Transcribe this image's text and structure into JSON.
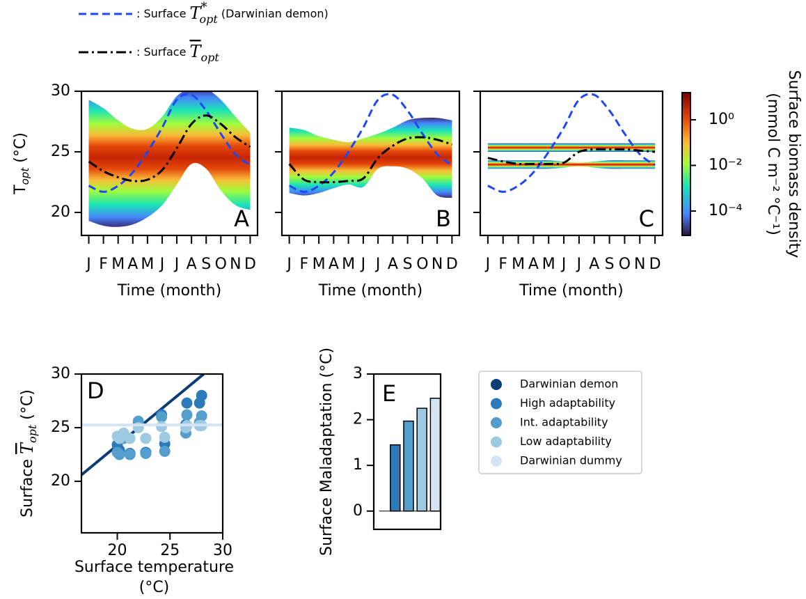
{
  "chart_data": [
    {
      "type": "density",
      "label": "A",
      "categories": [
        "J",
        "F",
        "M",
        "A",
        "M",
        "J",
        "J",
        "A",
        "S",
        "O",
        "N",
        "D"
      ],
      "xlabel": "Time (month)",
      "ylabel": [
        "T",
        "opt",
        " (°C)"
      ],
      "ylim": [
        18.1,
        30
      ],
      "yticks": [
        20,
        25,
        30
      ],
      "show_ytick_labels": true,
      "density_bands": [
        {
          "low": [
            19.3,
            18.9,
            18.8,
            19.0,
            19.6,
            20.6,
            22.3,
            24.0,
            23.6,
            21.8,
            20.6,
            20.2
          ],
          "high": [
            29.3,
            28.6,
            27.6,
            26.9,
            26.9,
            27.9,
            29.6,
            30.2,
            30.2,
            29.3,
            27.9,
            26.6
          ]
        }
      ],
      "series": [
        {
          "name": [
            ": Surface ",
            "T",
            "*",
            "opt",
            " (Darwinian demon)"
          ],
          "color": "#1f47f5",
          "dash": "dashed",
          "values": [
            22.2,
            21.7,
            22.2,
            23.3,
            25.0,
            27.0,
            29.3,
            29.7,
            28.4,
            26.5,
            24.8,
            23.9
          ]
        },
        {
          "name": [
            ": Surface ",
            "T",
            "opt"
          ],
          "color": "#000000",
          "dash": "dashdot",
          "values": [
            24.2,
            23.4,
            22.9,
            22.6,
            22.7,
            23.5,
            25.3,
            27.3,
            28.0,
            27.3,
            26.2,
            25.4
          ]
        }
      ]
    },
    {
      "type": "density",
      "label": "B",
      "categories": [
        "J",
        "F",
        "M",
        "A",
        "M",
        "J",
        "J",
        "A",
        "S",
        "O",
        "N",
        "D"
      ],
      "xlabel": "Time (month)",
      "ylim": [
        18.1,
        30
      ],
      "yticks": [
        20,
        25,
        30
      ],
      "show_ytick_labels": false,
      "density_bands": [
        {
          "low": [
            21.6,
            21.4,
            21.6,
            22.0,
            22.3,
            22.1,
            23.6,
            23.8,
            23.6,
            22.8,
            21.4,
            21.2
          ],
          "high": [
            27.0,
            26.8,
            26.3,
            26.0,
            25.8,
            26.1,
            26.5,
            27.0,
            27.6,
            27.8,
            27.8,
            27.6
          ]
        }
      ],
      "series": [
        {
          "color": "#1f47f5",
          "dash": "dashed",
          "values": [
            22.2,
            21.7,
            22.2,
            23.3,
            25.0,
            27.0,
            29.3,
            29.7,
            28.4,
            26.5,
            24.8,
            23.9
          ]
        },
        {
          "color": "#000000",
          "dash": "dashdot",
          "values": [
            24.0,
            22.7,
            22.5,
            22.5,
            22.6,
            22.8,
            24.5,
            25.5,
            26.1,
            26.2,
            26.0,
            25.6
          ]
        }
      ]
    },
    {
      "type": "density",
      "label": "C",
      "categories": [
        "J",
        "F",
        "M",
        "A",
        "M",
        "J",
        "J",
        "A",
        "S",
        "O",
        "N",
        "D"
      ],
      "xlabel": "Time (month)",
      "ylim": [
        18.1,
        30
      ],
      "yticks": [
        20,
        25,
        30
      ],
      "show_ytick_labels": false,
      "density_bands": [
        {
          "low": [
            25.0,
            25.0,
            25.0,
            25.0,
            25.0,
            25.0,
            25.0,
            25.0,
            25.0,
            25.0,
            25.0,
            25.0
          ],
          "high": [
            25.7,
            25.7,
            25.7,
            25.7,
            25.7,
            25.7,
            25.7,
            25.7,
            25.7,
            25.7,
            25.7,
            25.7
          ]
        },
        {
          "low": [
            23.6,
            23.6,
            23.6,
            23.6,
            23.6,
            23.7,
            23.8,
            23.7,
            23.6,
            23.6,
            23.6,
            23.6
          ],
          "high": [
            24.3,
            24.3,
            24.3,
            24.3,
            24.3,
            24.2,
            24.1,
            24.2,
            24.3,
            24.3,
            24.3,
            24.3
          ]
        }
      ],
      "series": [
        {
          "color": "#1f47f5",
          "dash": "dashed",
          "values": [
            22.2,
            21.7,
            22.2,
            23.3,
            25.0,
            27.0,
            29.3,
            29.7,
            28.4,
            26.5,
            24.8,
            23.9
          ]
        },
        {
          "color": "#000000",
          "dash": "dashdot",
          "values": [
            24.5,
            24.2,
            24.0,
            24.0,
            24.0,
            24.1,
            25.0,
            25.2,
            25.2,
            25.2,
            25.1,
            25.0
          ]
        }
      ],
      "colorbar": {
        "label": [
          "Surface biomass density",
          "(mmol C m⁻² °C⁻¹)"
        ],
        "scale": "log",
        "lim": [
          8.5e-06,
          15.5
        ],
        "ticks": [
          {
            "value": 1,
            "label": "10⁰"
          },
          {
            "value": 0.01,
            "label": "10⁻²"
          },
          {
            "value": 0.0001,
            "label": "10⁻⁴"
          }
        ]
      }
    },
    {
      "type": "scatter",
      "label": "D",
      "xlabel": [
        "Surface temperature",
        "(°C)"
      ],
      "ylabel": [
        "Surface  ",
        "T",
        "opt",
        " (°C)"
      ],
      "xlim": [
        16.6,
        30
      ],
      "ylim": [
        15.2,
        30
      ],
      "xticks": [
        20,
        25,
        30
      ],
      "yticks": [
        20,
        25,
        30
      ],
      "legend": "outside right",
      "series": [
        {
          "name": "Darwinian demon",
          "color": "#0b3c74",
          "style": "line",
          "x": [
            16.6,
            28.2
          ],
          "values": [
            20.6,
            30
          ]
        },
        {
          "name": "High adaptability",
          "color": "#2b7bba",
          "style": "points",
          "x": [
            20.6,
            20.0,
            20.2,
            21.2,
            22.7,
            24.5,
            26.5,
            27.8,
            28.0,
            26.6,
            24.2,
            22.0
          ],
          "values": [
            24.2,
            23.4,
            22.9,
            22.6,
            22.7,
            23.5,
            25.3,
            27.3,
            28.0,
            27.3,
            26.2,
            25.4
          ]
        },
        {
          "name": "Int. adaptability",
          "color": "#539ecd",
          "style": "points",
          "x": [
            20.6,
            20.0,
            20.2,
            21.2,
            22.7,
            24.5,
            26.5,
            27.8,
            28.0,
            26.6,
            24.2,
            22.0
          ],
          "values": [
            24.0,
            22.7,
            22.5,
            22.5,
            22.6,
            22.8,
            24.5,
            25.5,
            26.1,
            26.2,
            26.0,
            25.6
          ]
        },
        {
          "name": "Low adaptability",
          "color": "#9dcae1",
          "style": "points",
          "x": [
            20.6,
            20.0,
            20.2,
            21.2,
            22.7,
            24.5,
            26.5,
            27.8,
            28.0,
            26.6,
            24.2,
            22.0
          ],
          "values": [
            24.5,
            24.2,
            24.0,
            24.0,
            24.0,
            24.1,
            25.0,
            25.2,
            25.2,
            25.2,
            25.1,
            25.0
          ]
        },
        {
          "name": "Darwinian dummy",
          "color": "#d4e4f3",
          "style": "line",
          "x": [
            16.6,
            30
          ],
          "values": [
            25.25,
            25.25
          ]
        }
      ]
    },
    {
      "type": "bar",
      "label": "E",
      "ylabel": "Surface Maladaptation (°C)",
      "categories": [
        null,
        null,
        null,
        null,
        null
      ],
      "values": [
        0,
        1.45,
        1.97,
        2.25,
        2.47
      ],
      "colors": [
        "#0b3c74",
        "#2b7bba",
        "#539ecd",
        "#9dcae1",
        "#d4e4f3"
      ],
      "ylim": [
        -0.4,
        3
      ],
      "yticks": [
        0,
        1,
        2,
        3
      ],
      "zero_line": true
    }
  ]
}
